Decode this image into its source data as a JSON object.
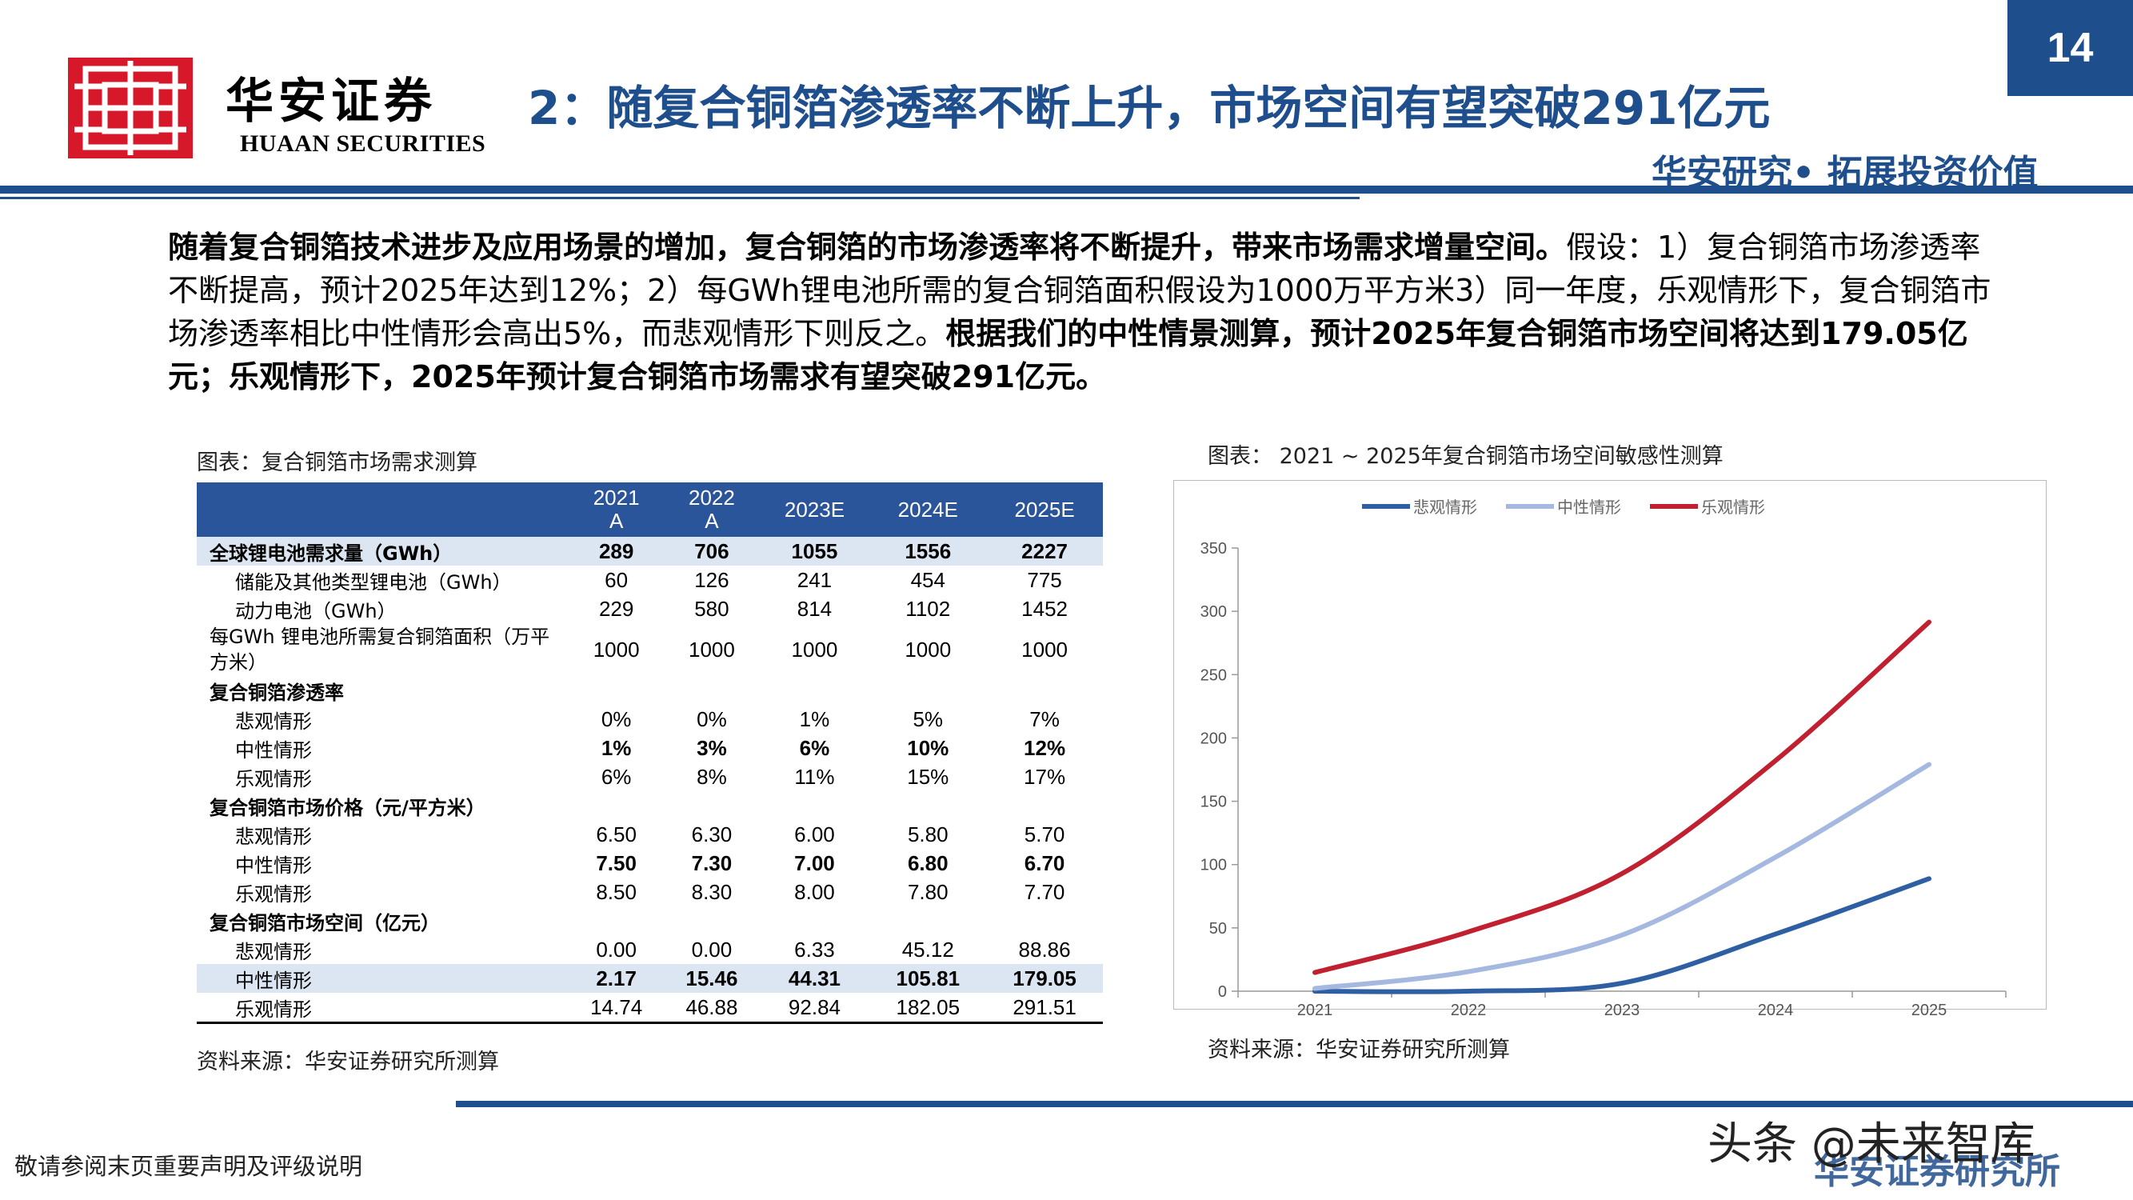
{
  "header": {
    "logo_cn": "华安证券",
    "logo_en": "HUAAN SECURITIES",
    "title": "2：随复合铜箔渗透率不断上升，市场空间有望突破291亿元",
    "page_number": "14",
    "slogan": "华安研究• 拓展投资价值",
    "brand_color": "#1f4e8c",
    "logo_color": "#d7182a"
  },
  "intro": {
    "p1": "随着复合铜箔技术进步及应用场景的增加，复合铜箔的市场渗透率将不断提升，带来市场需求增量空间。",
    "p2": "假设：1）复合铜箔市场渗透率不断提高，预计2025年达到12%；2）每GWh锂电池所需的复合铜箔面积假设为1000万平方米3）同一年度，乐观情形下，复合铜箔市场渗透率相比中性情形会高出5%，而悲观情形下则反之。",
    "p3": "根据我们的中性情景测算，预计2025年复合铜箔市场空间将达到179.05亿元；乐观情形下，2025年预计复合铜箔市场需求有望突破291亿元。"
  },
  "table": {
    "caption": "图表：复合铜箔市场需求测算",
    "header": [
      "",
      "2021\nA",
      "2022\nA",
      "2023E",
      "2024E",
      "2025E"
    ],
    "rows": [
      {
        "label": "全球锂电池需求量（GWh）",
        "values": [
          "289",
          "706",
          "1055",
          "1556",
          "2227"
        ],
        "style": "bold hl"
      },
      {
        "label": "储能及其他类型锂电池（GWh）",
        "values": [
          "60",
          "126",
          "241",
          "454",
          "775"
        ],
        "style": "i1"
      },
      {
        "label": "动力电池（GWh）",
        "values": [
          "229",
          "580",
          "814",
          "1102",
          "1452"
        ],
        "style": "i1"
      },
      {
        "label": "每GWh 锂电池所需复合铜箔面积（万平方米）",
        "values": [
          "1000",
          "1000",
          "1000",
          "1000",
          "1000"
        ],
        "style": "tall"
      },
      {
        "label": "复合铜箔渗透率",
        "values": [
          "",
          "",
          "",
          "",
          ""
        ],
        "style": "bold"
      },
      {
        "label": "悲观情形",
        "values": [
          "0%",
          "0%",
          "1%",
          "5%",
          "7%"
        ],
        "style": "i1"
      },
      {
        "label": "中性情形",
        "values": [
          "1%",
          "3%",
          "6%",
          "10%",
          "12%"
        ],
        "style": "i1 boldvals"
      },
      {
        "label": "乐观情形",
        "values": [
          "6%",
          "8%",
          "11%",
          "15%",
          "17%"
        ],
        "style": "i1"
      },
      {
        "label": "复合铜箔市场价格（元/平方米）",
        "values": [
          "",
          "",
          "",
          "",
          ""
        ],
        "style": "bold"
      },
      {
        "label": "悲观情形",
        "values": [
          "6.50",
          "6.30",
          "6.00",
          "5.80",
          "5.70"
        ],
        "style": "i1"
      },
      {
        "label": "中性情形",
        "values": [
          "7.50",
          "7.30",
          "7.00",
          "6.80",
          "6.70"
        ],
        "style": "i1 boldvals"
      },
      {
        "label": "乐观情形",
        "values": [
          "8.50",
          "8.30",
          "8.00",
          "7.80",
          "7.70"
        ],
        "style": "i1"
      },
      {
        "label": "复合铜箔市场空间（亿元）",
        "values": [
          "",
          "",
          "",
          "",
          ""
        ],
        "style": "bold"
      },
      {
        "label": "悲观情形",
        "values": [
          "0.00",
          "0.00",
          "6.33",
          "45.12",
          "88.86"
        ],
        "style": "i1"
      },
      {
        "label": "中性情形",
        "values": [
          "2.17",
          "15.46",
          "44.31",
          "105.81",
          "179.05"
        ],
        "style": "i1 boldvals hl"
      },
      {
        "label": "乐观情形",
        "values": [
          "14.74",
          "46.88",
          "92.84",
          "182.05",
          "291.51"
        ],
        "style": "i1"
      }
    ],
    "source": "资料来源：华安证券研究所测算",
    "header_color": "#2b559a",
    "highlight_color": "#dce6f2"
  },
  "chart_caption": "图表： 2021 ~ 2025年复合铜箔市场空间敏感性测算",
  "chart_source": "资料来源：华安证券研究所测算",
  "chart_data": {
    "type": "line",
    "title": "",
    "xlabel": "",
    "ylabel": "",
    "x": [
      "2021",
      "2022",
      "2023",
      "2024",
      "2025"
    ],
    "ylim": [
      0,
      350
    ],
    "yticks": [
      0,
      50,
      100,
      150,
      200,
      250,
      300,
      350
    ],
    "legend_position": "top",
    "grid": false,
    "series": [
      {
        "name": "悲观情形",
        "values": [
          0.0,
          0.0,
          6.33,
          45.12,
          88.86
        ],
        "color": "#2e5fa3"
      },
      {
        "name": "中性情形",
        "values": [
          2.17,
          15.46,
          44.31,
          105.81,
          179.05
        ],
        "color": "#a5b8e0"
      },
      {
        "name": "乐观情形",
        "values": [
          14.74,
          46.88,
          92.84,
          182.05,
          291.51
        ],
        "color": "#c0202f"
      }
    ]
  },
  "footer": {
    "disclaimer": "敬请参阅末页重要声明及评级说明",
    "brand": "华安证券研究所",
    "watermark": "头条 @未来智库"
  }
}
